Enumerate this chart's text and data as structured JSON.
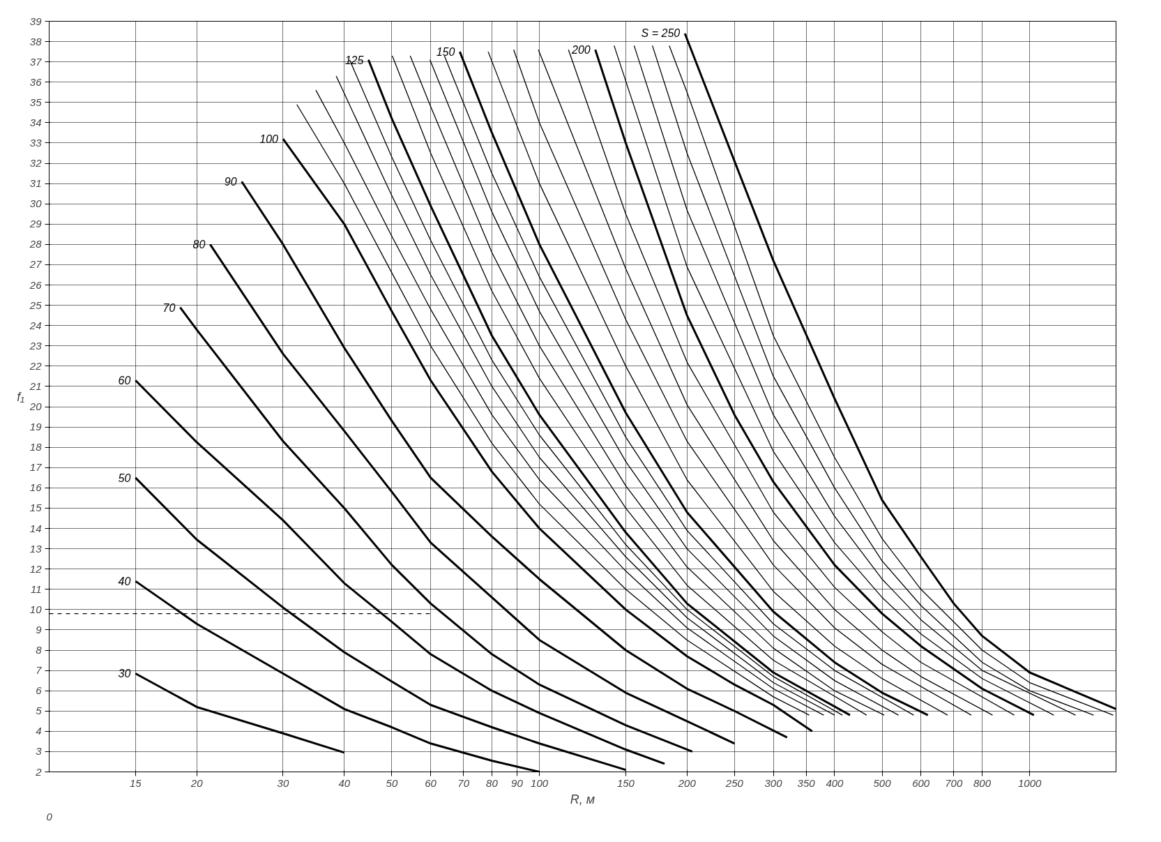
{
  "chart_data": {
    "type": "line",
    "xlabel": "R, м",
    "ylabel": "f₁",
    "log": "x",
    "grid": true,
    "legend": false,
    "annotations": [
      "0"
    ],
    "xlim": [
      10,
      1500
    ],
    "ylim": [
      2,
      39
    ],
    "xticks": [
      15,
      20,
      30,
      40,
      50,
      60,
      70,
      80,
      90,
      100,
      150,
      200,
      250,
      300,
      350,
      400,
      500,
      600,
      700,
      800,
      1000
    ],
    "yticks": [
      2,
      3,
      4,
      5,
      6,
      7,
      8,
      9,
      10,
      11,
      12,
      13,
      14,
      15,
      16,
      17,
      18,
      19,
      20,
      21,
      22,
      23,
      24,
      25,
      26,
      27,
      28,
      29,
      30,
      31,
      32,
      33,
      34,
      35,
      36,
      37,
      38,
      39
    ],
    "series": [
      {
        "name": "30",
        "color": "#000000",
        "x": [
          15,
          20,
          30,
          40
        ],
        "values": [
          6.85,
          5.2,
          3.9,
          2.95
        ]
      },
      {
        "name": "40",
        "color": "#000000",
        "x": [
          15,
          20,
          30,
          40,
          50,
          60,
          80,
          100
        ],
        "values": [
          11.4,
          9.3,
          6.85,
          5.1,
          4.2,
          3.4,
          2.55,
          2.0
        ]
      },
      {
        "name": "50",
        "color": "#000000",
        "x": [
          15,
          20,
          30,
          40,
          50,
          60,
          80,
          100,
          150
        ],
        "values": [
          16.5,
          13.45,
          10.1,
          7.9,
          6.45,
          5.3,
          4.2,
          3.4,
          2.1
        ]
      },
      {
        "name": "60",
        "color": "#000000",
        "x": [
          15,
          20,
          30,
          40,
          50,
          60,
          80,
          100,
          150,
          180
        ],
        "values": [
          21.3,
          18.25,
          14.4,
          11.3,
          9.4,
          7.8,
          6.0,
          4.9,
          3.1,
          2.4
        ]
      },
      {
        "name": "70",
        "color": "#000000",
        "x": [
          18.5,
          20,
          30,
          40,
          50,
          60,
          80,
          100,
          150,
          205
        ],
        "values": [
          24.9,
          23.8,
          18.3,
          15.0,
          12.2,
          10.3,
          7.8,
          6.3,
          4.3,
          3.0
        ]
      },
      {
        "name": "80",
        "color": "#000000",
        "x": [
          21.3,
          30,
          40,
          50,
          60,
          80,
          100,
          150,
          200,
          250
        ],
        "values": [
          28.0,
          22.6,
          18.8,
          15.8,
          13.3,
          10.6,
          8.5,
          5.9,
          4.5,
          3.4
        ]
      },
      {
        "name": "90",
        "color": "#000000",
        "x": [
          24.7,
          30,
          40,
          50,
          60,
          80,
          100,
          150,
          200,
          250,
          320
        ],
        "values": [
          31.1,
          28.0,
          22.9,
          19.3,
          16.5,
          13.6,
          11.5,
          8.0,
          6.1,
          5.0,
          3.7
        ]
      },
      {
        "name": "100",
        "color": "#000000",
        "x": [
          30,
          40,
          50,
          60,
          80,
          100,
          150,
          200,
          250,
          300,
          360
        ],
        "values": [
          33.2,
          29.0,
          24.7,
          21.3,
          16.8,
          14.0,
          10.0,
          7.7,
          6.3,
          5.3,
          4.0
        ]
      },
      {
        "color": "#000000",
        "x": [
          32,
          40,
          50,
          60,
          80,
          100,
          150,
          200,
          300,
          355
        ],
        "values": [
          34.9,
          31.0,
          26.6,
          23.0,
          18.2,
          15.2,
          11.0,
          8.5,
          5.7,
          4.8
        ]
      },
      {
        "color": "#000000",
        "x": [
          35,
          40,
          50,
          60,
          80,
          100,
          150,
          200,
          300,
          380
        ],
        "values": [
          35.6,
          33.0,
          28.4,
          24.8,
          19.6,
          16.4,
          11.9,
          9.1,
          6.1,
          4.8
        ]
      },
      {
        "color": "#000000",
        "x": [
          38.5,
          50,
          60,
          80,
          100,
          150,
          200,
          300,
          400
        ],
        "values": [
          36.3,
          30.4,
          26.5,
          21.0,
          17.5,
          12.6,
          9.6,
          6.4,
          4.8
        ]
      },
      {
        "color": "#000000",
        "x": [
          41,
          50,
          60,
          80,
          100,
          150,
          200,
          300,
          415
        ],
        "values": [
          37.1,
          32.3,
          28.2,
          22.3,
          18.6,
          13.2,
          10.0,
          6.7,
          4.8
        ]
      },
      {
        "name": "125",
        "color": "#000000",
        "x": [
          44.8,
          50,
          60,
          80,
          100,
          150,
          200,
          300,
          430
        ],
        "values": [
          37.1,
          34.2,
          29.9,
          23.5,
          19.6,
          13.8,
          10.3,
          6.9,
          4.8
        ]
      },
      {
        "color": "#000000",
        "x": [
          50.1,
          60,
          80,
          100,
          150,
          200,
          300,
          465
        ],
        "values": [
          37.3,
          32.5,
          25.7,
          21.4,
          15.0,
          11.2,
          7.5,
          4.8
        ]
      },
      {
        "color": "#000000",
        "x": [
          54.5,
          60,
          80,
          100,
          150,
          200,
          300,
          400,
          505
        ],
        "values": [
          37.3,
          34.8,
          27.6,
          23.0,
          16.1,
          12.1,
          8.1,
          6.0,
          4.8
        ]
      },
      {
        "color": "#000000",
        "x": [
          59.8,
          80,
          100,
          150,
          200,
          300,
          400,
          540
        ],
        "values": [
          37.1,
          29.6,
          24.7,
          17.3,
          13.0,
          8.7,
          6.5,
          4.8
        ]
      },
      {
        "color": "#000000",
        "x": [
          64,
          80,
          100,
          150,
          200,
          300,
          400,
          580
        ],
        "values": [
          37.3,
          31.5,
          26.4,
          18.5,
          13.9,
          9.3,
          7.0,
          4.8
        ]
      },
      {
        "name": "150",
        "color": "#000000",
        "x": [
          68.8,
          80,
          100,
          150,
          200,
          300,
          400,
          500,
          620
        ],
        "values": [
          37.5,
          33.5,
          28.0,
          19.7,
          14.8,
          9.9,
          7.4,
          5.9,
          4.8
        ]
      },
      {
        "color": "#000000",
        "x": [
          78.6,
          100,
          150,
          200,
          300,
          400,
          500,
          680
        ],
        "values": [
          37.5,
          31.0,
          22.0,
          16.4,
          10.9,
          8.2,
          6.6,
          4.8
        ]
      },
      {
        "color": "#000000",
        "x": [
          88.6,
          100,
          150,
          200,
          300,
          400,
          500,
          760
        ],
        "values": [
          37.6,
          34.0,
          24.3,
          18.3,
          12.2,
          9.1,
          7.3,
          4.8
        ]
      },
      {
        "color": "#000000",
        "x": [
          99.5,
          150,
          200,
          300,
          400,
          500,
          600,
          840
        ],
        "values": [
          37.6,
          26.8,
          20.1,
          13.4,
          10.0,
          8.0,
          6.7,
          4.8
        ]
      },
      {
        "color": "#000000",
        "x": [
          114.6,
          150,
          200,
          300,
          400,
          500,
          600,
          930
        ],
        "values": [
          37.6,
          29.5,
          22.2,
          14.8,
          11.1,
          8.9,
          7.4,
          4.8
        ]
      },
      {
        "name": "200",
        "color": "#000000",
        "x": [
          130,
          150,
          200,
          250,
          300,
          400,
          500,
          600,
          800,
          1020
        ],
        "values": [
          37.6,
          33.0,
          24.5,
          19.6,
          16.3,
          12.2,
          9.8,
          8.2,
          6.1,
          4.8
        ]
      },
      {
        "color": "#000000",
        "x": [
          142,
          200,
          300,
          400,
          500,
          600,
          800,
          1120
        ],
        "values": [
          37.8,
          26.9,
          17.8,
          13.3,
          10.6,
          8.8,
          6.6,
          4.8
        ]
      },
      {
        "color": "#000000",
        "x": [
          156,
          200,
          300,
          400,
          500,
          600,
          800,
          1240
        ],
        "values": [
          37.8,
          29.7,
          19.6,
          14.6,
          11.5,
          9.5,
          7.0,
          4.8
        ]
      },
      {
        "color": "#000000",
        "x": [
          170,
          200,
          300,
          400,
          500,
          600,
          800,
          1000,
          1350
        ],
        "values": [
          37.8,
          32.5,
          21.5,
          16.0,
          12.4,
          10.2,
          7.4,
          6.0,
          4.8
        ]
      },
      {
        "color": "#000000",
        "x": [
          184,
          200,
          300,
          400,
          500,
          600,
          800,
          1000,
          1480
        ],
        "values": [
          37.8,
          35.5,
          23.5,
          17.5,
          13.5,
          11.0,
          8.0,
          6.4,
          4.8
        ]
      },
      {
        "name": "S = 250",
        "color": "#000000",
        "x": [
          198,
          250,
          300,
          400,
          500,
          600,
          700,
          800,
          1000,
          1500
        ],
        "values": [
          38.4,
          32.1,
          27.2,
          20.4,
          15.4,
          12.6,
          10.3,
          8.7,
          6.9,
          5.1
        ]
      },
      {
        "color": "#000000",
        "line_style": "dashed",
        "x": [
          10,
          60
        ],
        "values": [
          9.8,
          9.8
        ]
      }
    ]
  }
}
